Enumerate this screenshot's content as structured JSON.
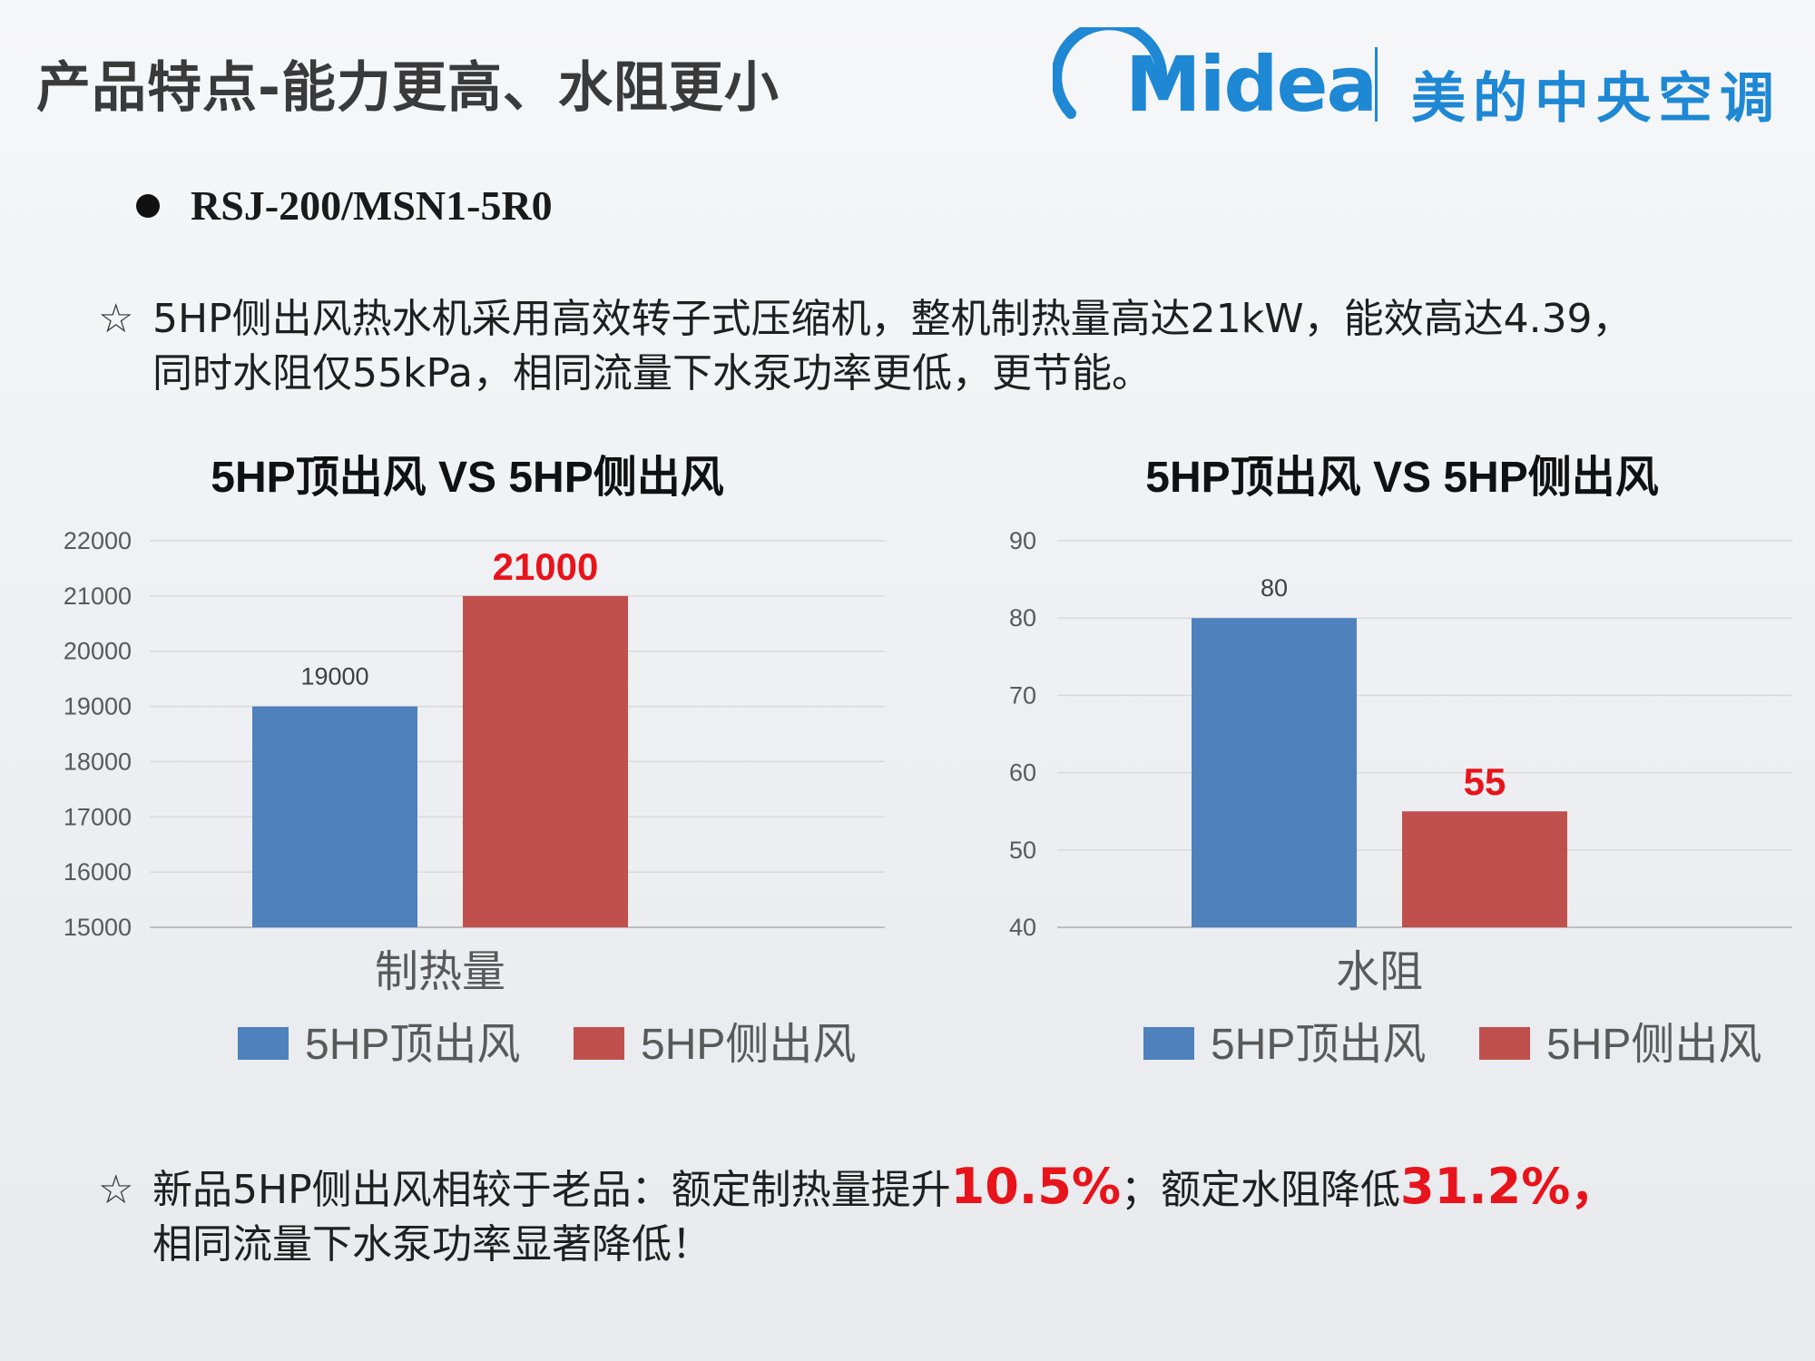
{
  "slide": {
    "title": "产品特点-能力更高、水阻更小",
    "brand_logo_word": "Midea",
    "brand_cn": "美的中央空调",
    "model": "RSJ-200/MSN1-5R0",
    "bullet_star": "☆",
    "para1_line1": "5HP侧出风热水机采用高效转子式压缩机，整机制热量高达21kW，能效高达4.39，",
    "para1_line2": "同时水阻仅55kPa，相同流量下水泵功率更低，更节能。",
    "para2_a": "新品5HP侧出风相较于老品：额定制热量提升",
    "para2_hl1": "10.5%",
    "para2_b": "；额定水阻降低",
    "para2_hl2": "31.2%，",
    "para2_line2": "相同流量下水泵功率显著降低！"
  },
  "colors": {
    "blue": "#4f81bd",
    "red": "#c0504d",
    "highlight": "#e8141b",
    "brand": "#1e88d4"
  },
  "chart_data": [
    {
      "type": "bar",
      "title": "5HP顶出风 VS 5HP侧出风",
      "categories": [
        "制热量"
      ],
      "series": [
        {
          "name": "5HP顶出风",
          "values": [
            19000
          ],
          "label": "19000"
        },
        {
          "name": "5HP侧出风",
          "values": [
            21000
          ],
          "label": "21000"
        }
      ],
      "ylim": [
        15000,
        22000
      ],
      "yticks": [
        "15000",
        "16000",
        "17000",
        "18000",
        "19000",
        "20000",
        "21000",
        "22000"
      ],
      "grid": true,
      "legend": "bottom"
    },
    {
      "type": "bar",
      "title": "5HP顶出风 VS 5HP侧出风",
      "categories": [
        "水阻"
      ],
      "series": [
        {
          "name": "5HP顶出风",
          "values": [
            80
          ],
          "label": "80"
        },
        {
          "name": "5HP侧出风",
          "values": [
            55
          ],
          "label": "55"
        }
      ],
      "ylim": [
        40,
        90
      ],
      "yticks": [
        "40",
        "50",
        "60",
        "70",
        "80",
        "90"
      ],
      "grid": true,
      "legend": "bottom"
    }
  ]
}
